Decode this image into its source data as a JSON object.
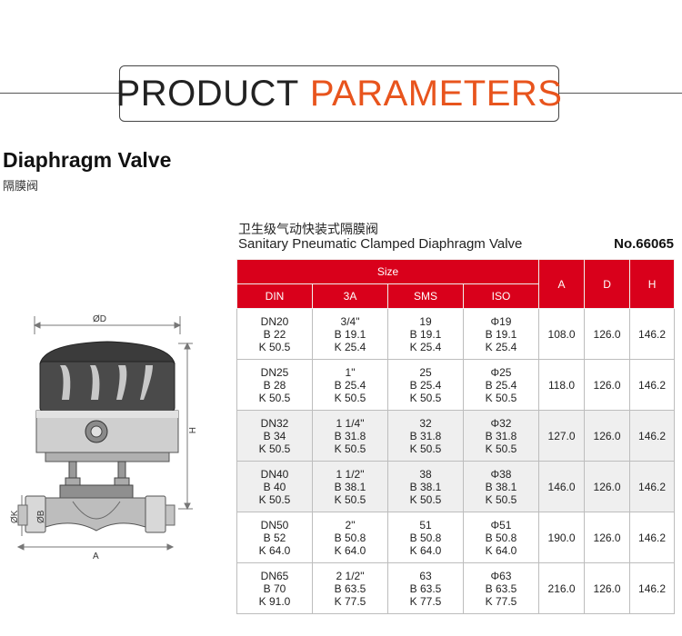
{
  "header": {
    "word1": "PRODUCT",
    "word2": "PARAMETERS",
    "accent_color": "#e8541d"
  },
  "product": {
    "title": "Diaphragm Valve",
    "title_cn": "隔膜阀",
    "subtitle_cn": "卫生级气动快装式隔膜阀",
    "subtitle_en": "Sanitary Pneumatic Clamped Diaphragm Valve",
    "model_no": "No.66065"
  },
  "diagram": {
    "label_d": "ØD",
    "label_h": "H",
    "label_a": "A",
    "label_k": "ØK",
    "label_b": "ØB"
  },
  "table": {
    "header_color": "#d9001b",
    "size_label": "Size",
    "col_labels": [
      "DIN",
      "3A",
      "SMS",
      "ISO",
      "A",
      "D",
      "H"
    ],
    "rows": [
      {
        "din": [
          "DN20",
          "B 22",
          "K 50.5"
        ],
        "a3": [
          "3/4\"",
          "B 19.1",
          "K 25.4"
        ],
        "sms": [
          "19",
          "B 19.1",
          "K 25.4"
        ],
        "iso": [
          "Φ19",
          "B 19.1",
          "K 25.4"
        ],
        "A": "108.0",
        "D": "126.0",
        "H": "146.2"
      },
      {
        "din": [
          "DN25",
          "B 28",
          "K 50.5"
        ],
        "a3": [
          "1\"",
          "B 25.4",
          "K 50.5"
        ],
        "sms": [
          "25",
          "B 25.4",
          "K 50.5"
        ],
        "iso": [
          "Φ25",
          "B 25.4",
          "K 50.5"
        ],
        "A": "118.0",
        "D": "126.0",
        "H": "146.2"
      },
      {
        "din": [
          "DN32",
          "B 34",
          "K 50.5"
        ],
        "a3": [
          "1 1/4\"",
          "B 31.8",
          "K 50.5"
        ],
        "sms": [
          "32",
          "B 31.8",
          "K 50.5"
        ],
        "iso": [
          "Φ32",
          "B 31.8",
          "K 50.5"
        ],
        "A": "127.0",
        "D": "126.0",
        "H": "146.2"
      },
      {
        "din": [
          "DN40",
          "B 40",
          "K 50.5"
        ],
        "a3": [
          "1 1/2\"",
          "B 38.1",
          "K 50.5"
        ],
        "sms": [
          "38",
          "B 38.1",
          "K 50.5"
        ],
        "iso": [
          "Φ38",
          "B 38.1",
          "K 50.5"
        ],
        "A": "146.0",
        "D": "126.0",
        "H": "146.2"
      },
      {
        "din": [
          "DN50",
          "B 52",
          "K 64.0"
        ],
        "a3": [
          "2\"",
          "B 50.8",
          "K 64.0"
        ],
        "sms": [
          "51",
          "B 50.8",
          "K 64.0"
        ],
        "iso": [
          "Φ51",
          "B 50.8",
          "K 64.0"
        ],
        "A": "190.0",
        "D": "126.0",
        "H": "146.2"
      },
      {
        "din": [
          "DN65",
          "B 70",
          "K 91.0"
        ],
        "a3": [
          "2 1/2\"",
          "B 63.5",
          "K 77.5"
        ],
        "sms": [
          "63",
          "B 63.5",
          "K 77.5"
        ],
        "iso": [
          "Φ63",
          "B 63.5",
          "K 77.5"
        ],
        "A": "216.0",
        "D": "126.0",
        "H": "146.2"
      }
    ]
  }
}
